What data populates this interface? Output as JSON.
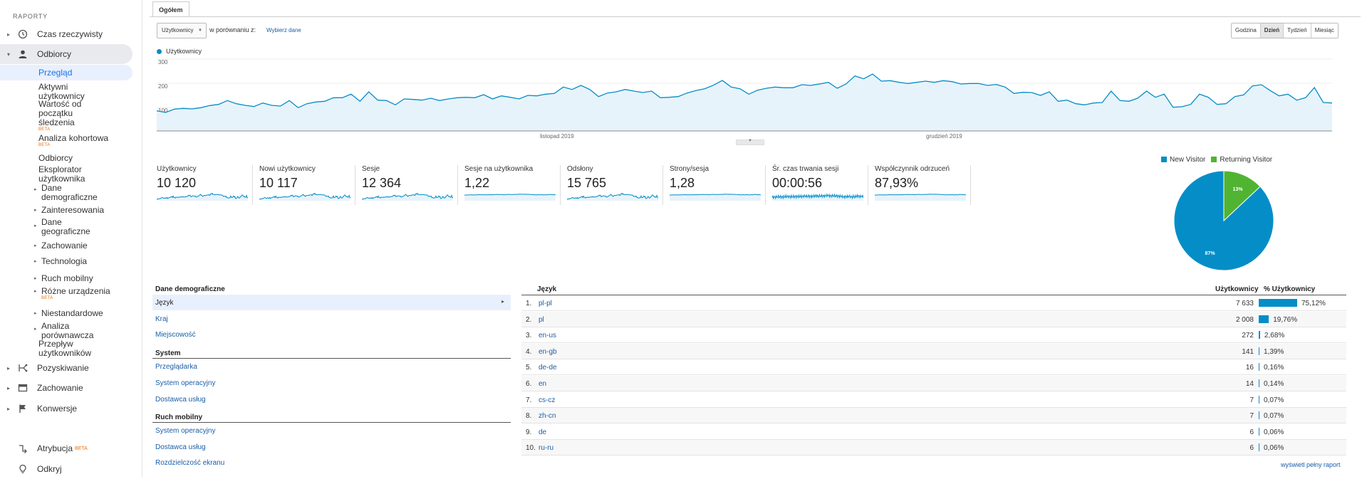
{
  "sidebar": {
    "header": "RAPORTY",
    "top_items": [
      {
        "label": "Czas rzeczywisty",
        "icon": "clock-icon"
      },
      {
        "label": "Odbiorcy",
        "icon": "person-icon"
      },
      {
        "label": "Pozyskiwanie",
        "icon": "acquisition-icon"
      },
      {
        "label": "Zachowanie",
        "icon": "behavior-icon"
      },
      {
        "label": "Konwersje",
        "icon": "flag-icon"
      },
      {
        "label": "Atrybucja",
        "icon": "attribution-icon",
        "badge": "BETA"
      },
      {
        "label": "Odkryj",
        "icon": "lightbulb-icon"
      }
    ],
    "audience_sub": {
      "przeglad": "Przegląd",
      "aktywni_1": "Aktywni",
      "aktywni_2": "użytkownicy",
      "wartosc_1": "Wartość od",
      "wartosc_2": "początku",
      "wartosc_3": "śledzenia",
      "wartosc_badge": "BETA",
      "kohorta": "Analiza kohortowa",
      "kohorta_badge": "BETA",
      "odbiorcy": "Odbiorcy",
      "eksplorator_1": "Eksplorator",
      "eksplorator_2": "użytkownika",
      "dane_demo_1": "Dane",
      "dane_demo_2": "demograficzne",
      "zainteresowania": "Zainteresowania",
      "dane_geo_1": "Dane",
      "dane_geo_2": "geograficzne",
      "zachowanie": "Zachowanie",
      "technologia": "Technologia",
      "ruch_mobilny": "Ruch mobilny",
      "rozne": "Różne urządzenia",
      "rozne_badge": "BETA",
      "niestandardowe": "Niestandardowe",
      "analiza_1": "Analiza",
      "analiza_2": "porównawcza",
      "przeplyw_1": "Przepływ",
      "przeplyw_2": "użytkowników"
    }
  },
  "tab": "Ogółem",
  "toolbar": {
    "metric": "Użytkownicy",
    "compare_label": "w porównaniu z:",
    "compare_link": "Wybierz dane",
    "granularity": [
      "Godzina",
      "Dzień",
      "Tydzień",
      "Miesiąc"
    ],
    "granularity_selected": "Dzień"
  },
  "chart_data": [
    {
      "type": "area",
      "legend": "Użytkownicy",
      "y_ticks": [
        "300",
        "200",
        "100"
      ],
      "ylim": [
        0,
        300
      ],
      "x_labels": [
        "listopad 2019",
        "grudzień 2019"
      ],
      "values": [
        85,
        78,
        92,
        95,
        93,
        98,
        107,
        112,
        128,
        115,
        108,
        103,
        118,
        108,
        105,
        128,
        98,
        115,
        122,
        125,
        140,
        140,
        155,
        125,
        165,
        130,
        128,
        110,
        135,
        133,
        130,
        138,
        128,
        135,
        140,
        142,
        140,
        153,
        135,
        148,
        142,
        135,
        150,
        148,
        155,
        158,
        185,
        175,
        192,
        175,
        145,
        160,
        165,
        175,
        168,
        162,
        168,
        140,
        142,
        145,
        160,
        170,
        178,
        193,
        213,
        185,
        178,
        155,
        172,
        180,
        185,
        182,
        182,
        195,
        192,
        198,
        205,
        180,
        198,
        232,
        220,
        240,
        210,
        212,
        205,
        200,
        205,
        210,
        205,
        212,
        208,
        198,
        200,
        200,
        192,
        196,
        185,
        158,
        163,
        162,
        150,
        165,
        125,
        130,
        115,
        110,
        118,
        120,
        168,
        128,
        125,
        138,
        168,
        142,
        155,
        100,
        102,
        112,
        155,
        142,
        112,
        115,
        145,
        152,
        190,
        195,
        170,
        148,
        155,
        130,
        140,
        183,
        120,
        118
      ],
      "color": "#058dc7",
      "fill": "#e7f3fa"
    },
    {
      "type": "pie",
      "series": [
        {
          "name": "New Visitor",
          "value": 87,
          "label": "87%",
          "color": "#058dc7"
        },
        {
          "name": "Returning Visitor",
          "value": 13,
          "label": "13%",
          "color": "#50b432"
        }
      ]
    }
  ],
  "scorecards": [
    {
      "label": "Użytkownicy",
      "value": "10 120"
    },
    {
      "label": "Nowi użytkownicy",
      "value": "10 117"
    },
    {
      "label": "Sesje",
      "value": "12 364"
    },
    {
      "label": "Sesje na użytkownika",
      "value": "1,22"
    },
    {
      "label": "Odsłony",
      "value": "15 765"
    },
    {
      "label": "Strony/sesja",
      "value": "1,28"
    },
    {
      "label": "Śr. czas trwania sesji",
      "value": "00:00:56"
    },
    {
      "label": "Współczynnik odrzuceń",
      "value": "87,93%"
    }
  ],
  "demographics": {
    "head": "Dane demograficzne",
    "items": [
      "Język",
      "Kraj",
      "Miejscowość"
    ],
    "system_head": "System",
    "system_items": [
      "Przeglądarka",
      "System operacyjny",
      "Dostawca usług"
    ],
    "mobile_head": "Ruch mobilny",
    "mobile_items": [
      "System operacyjny",
      "Dostawca usług",
      "Rozdzielczość ekranu"
    ]
  },
  "table": {
    "col_lang": "Język",
    "col_users": "Użytkownicy",
    "col_pct": "% Użytkownicy",
    "rows": [
      {
        "num": "1.",
        "lang": "pl-pl",
        "users": "7 633",
        "pct": "75,12%",
        "share": 75.12
      },
      {
        "num": "2.",
        "lang": "pl",
        "users": "2 008",
        "pct": "19,76%",
        "share": 19.76
      },
      {
        "num": "3.",
        "lang": "en-us",
        "users": "272",
        "pct": "2,68%",
        "share": 2.68
      },
      {
        "num": "4.",
        "lang": "en-gb",
        "users": "141",
        "pct": "1,39%",
        "share": 1.39
      },
      {
        "num": "5.",
        "lang": "de-de",
        "users": "16",
        "pct": "0,16%",
        "share": 0.16
      },
      {
        "num": "6.",
        "lang": "en",
        "users": "14",
        "pct": "0,14%",
        "share": 0.14
      },
      {
        "num": "7.",
        "lang": "cs-cz",
        "users": "7",
        "pct": "0,07%",
        "share": 0.07
      },
      {
        "num": "8.",
        "lang": "zh-cn",
        "users": "7",
        "pct": "0,07%",
        "share": 0.07
      },
      {
        "num": "9.",
        "lang": "de",
        "users": "6",
        "pct": "0,06%",
        "share": 0.06
      },
      {
        "num": "10.",
        "lang": "ru-ru",
        "users": "6",
        "pct": "0,06%",
        "share": 0.06
      }
    ],
    "full_report": "wyświetl pełny raport"
  }
}
